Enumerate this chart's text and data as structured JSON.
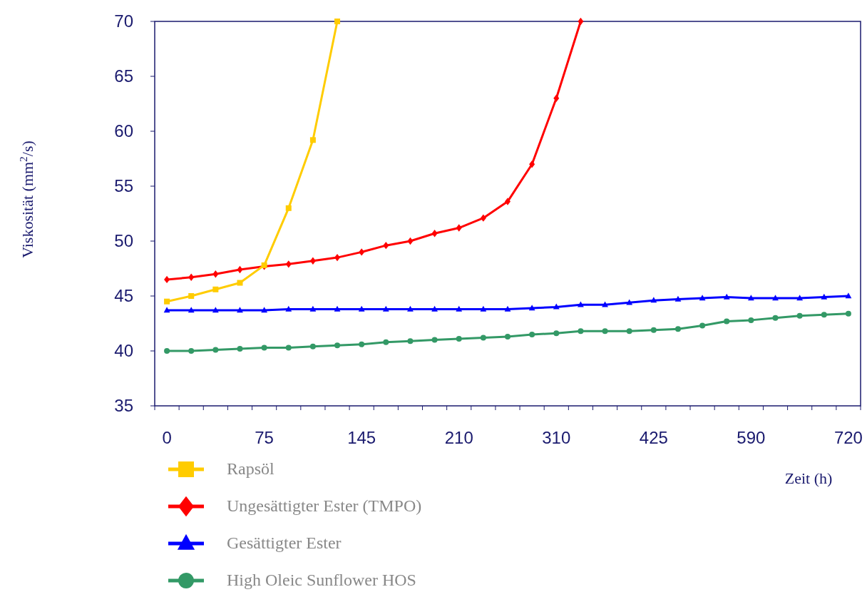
{
  "chart_data": {
    "type": "line",
    "xlabel": "Zeit (h)",
    "ylabel": "Viskosität (mm$^{2}$/s)",
    "categories": [
      "0",
      null,
      null,
      null,
      "75",
      null,
      null,
      null,
      "145",
      null,
      null,
      null,
      "210",
      null,
      null,
      null,
      "310",
      null,
      null,
      null,
      "425",
      null,
      null,
      null,
      "590",
      null,
      null,
      null,
      "720"
    ],
    "ylim": [
      35,
      70
    ],
    "yticks": [
      35,
      40,
      45,
      50,
      55,
      60,
      65,
      70
    ],
    "grid": false,
    "legend": "bottom",
    "series": [
      {
        "name": "Rapsöl",
        "color": "#ffcc00",
        "marker": "square",
        "values": [
          44.5,
          45.0,
          45.6,
          46.2,
          47.8,
          53.0,
          59.2,
          70.0,
          null,
          null,
          null,
          null,
          null,
          null,
          null,
          null,
          null,
          null,
          null,
          null,
          null,
          null,
          null,
          null,
          null,
          null,
          null,
          null,
          null
        ]
      },
      {
        "name": "Ungesättigter Ester (TMPO)",
        "color": "#ff0000",
        "marker": "diamond",
        "values": [
          46.5,
          46.7,
          47.0,
          47.4,
          47.7,
          47.9,
          48.2,
          48.5,
          49.0,
          49.6,
          50.0,
          50.7,
          51.2,
          52.1,
          53.6,
          57.0,
          63.0,
          70.0,
          null,
          null,
          null,
          null,
          null,
          null,
          null,
          null,
          null,
          null,
          null
        ]
      },
      {
        "name": "Gesättigter Ester",
        "color": "#0000ff",
        "marker": "triangle",
        "values": [
          43.7,
          43.7,
          43.7,
          43.7,
          43.7,
          43.8,
          43.8,
          43.8,
          43.8,
          43.8,
          43.8,
          43.8,
          43.8,
          43.8,
          43.8,
          43.9,
          44.0,
          44.2,
          44.2,
          44.4,
          44.6,
          44.7,
          44.8,
          44.9,
          44.8,
          44.8,
          44.8,
          44.9,
          45.0
        ]
      },
      {
        "name": "High Oleic Sunflower HOS",
        "color": "#339966",
        "marker": "circle",
        "values": [
          40.0,
          40.0,
          40.1,
          40.2,
          40.3,
          40.3,
          40.4,
          40.5,
          40.6,
          40.8,
          40.9,
          41.0,
          41.1,
          41.2,
          41.3,
          41.5,
          41.6,
          41.8,
          41.8,
          41.8,
          41.9,
          42.0,
          42.3,
          42.7,
          42.8,
          43.0,
          43.2,
          43.3,
          43.4
        ]
      }
    ]
  }
}
